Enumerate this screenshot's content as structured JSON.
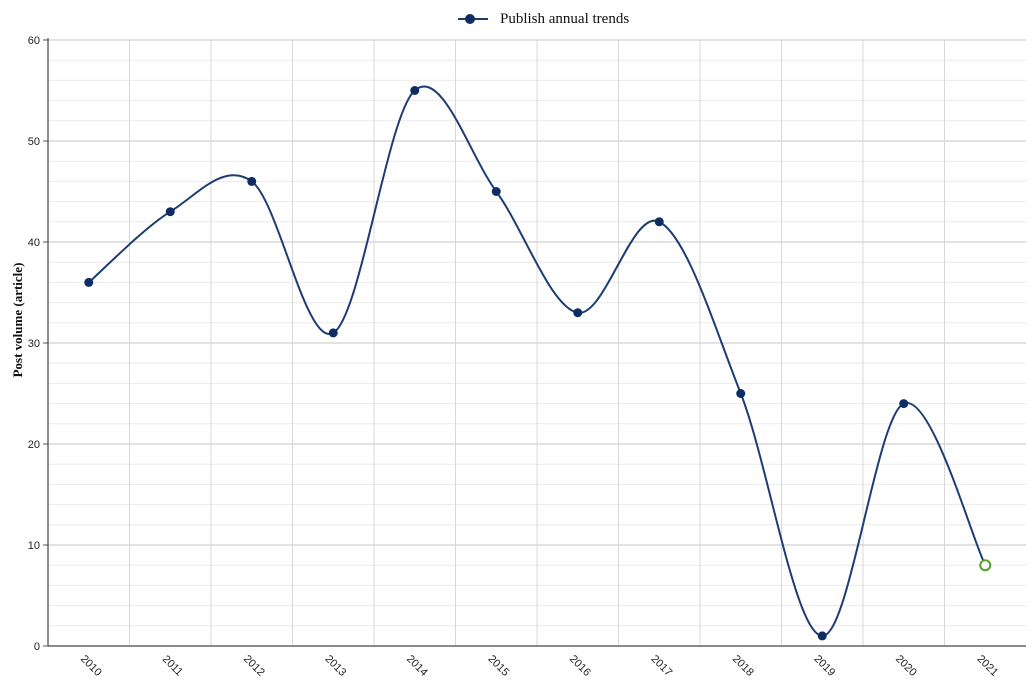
{
  "chart_data": {
    "type": "line",
    "title": "",
    "xlabel": "",
    "ylabel": "Post volume (article)",
    "ylim": [
      0,
      60
    ],
    "yticks": [
      0,
      10,
      20,
      30,
      40,
      50,
      60
    ],
    "grid": true,
    "legend_position": "top-center",
    "smooth": true,
    "categories": [
      "2010",
      "2011",
      "2012",
      "2013",
      "2014",
      "2015",
      "2016",
      "2017",
      "2018",
      "2019",
      "2020",
      "2021"
    ],
    "series": [
      {
        "name": "Publish annual trends",
        "color": "#1b3d73",
        "marker_color": "#0d2d63",
        "values": [
          36,
          43,
          46,
          31,
          55,
          45,
          33,
          42,
          25,
          1,
          24,
          8
        ],
        "highlight_last": {
          "marker": "hollow-circle",
          "color": "#5aa02c"
        }
      }
    ]
  }
}
